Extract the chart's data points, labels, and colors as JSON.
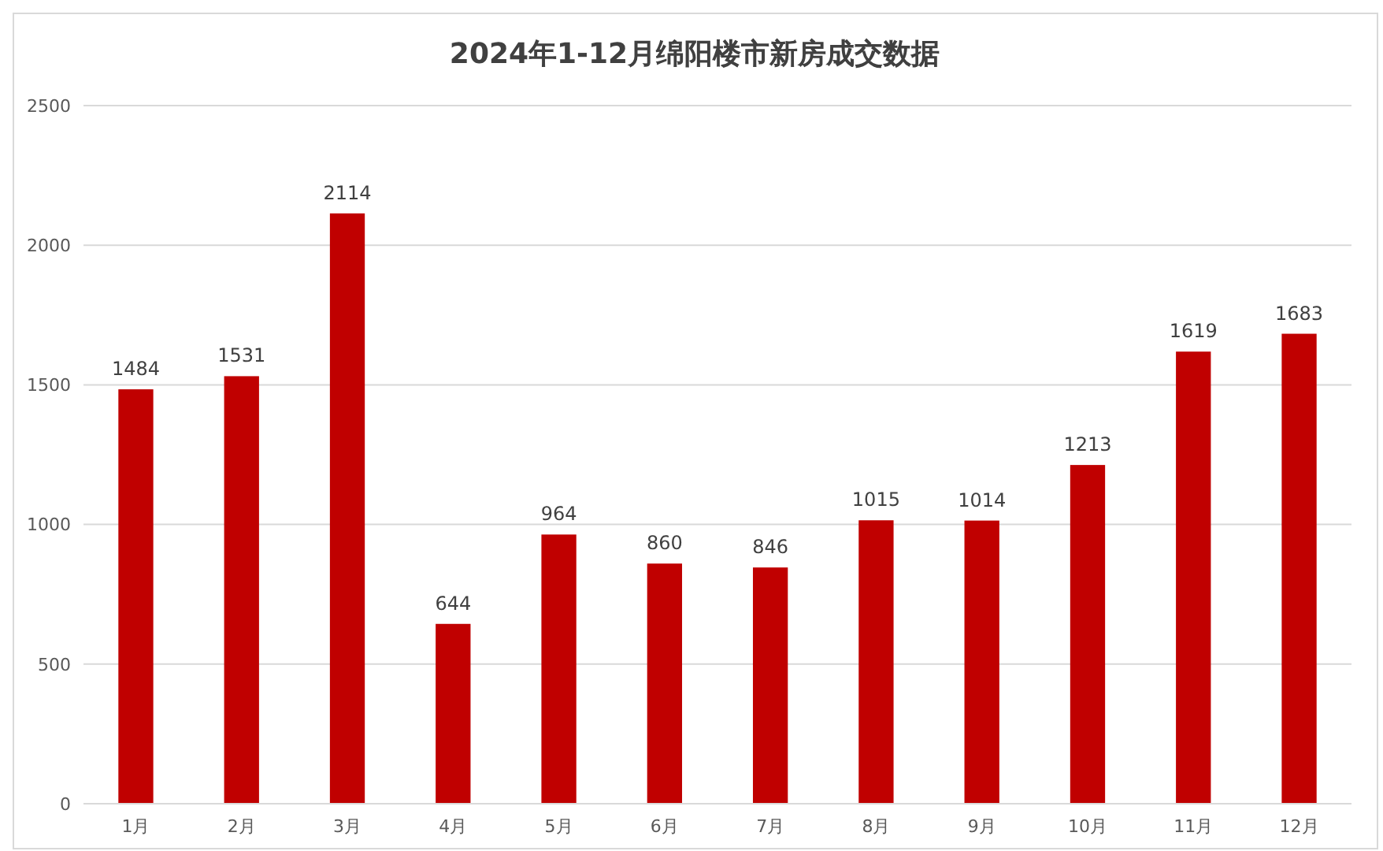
{
  "chart_data": {
    "type": "bar",
    "title": "2024年1-12月绵阳楼市新房成交数据",
    "categories": [
      "1月",
      "2月",
      "3月",
      "4月",
      "5月",
      "6月",
      "7月",
      "8月",
      "9月",
      "10月",
      "11月",
      "12月"
    ],
    "values": [
      1484,
      1531,
      2114,
      644,
      964,
      860,
      846,
      1015,
      1014,
      1213,
      1619,
      1683
    ],
    "color": "#c00000",
    "ylim": [
      0,
      2500
    ],
    "yticks": [
      0,
      500,
      1000,
      1500,
      2000,
      2500
    ],
    "grid": "y",
    "data_labels": true
  }
}
